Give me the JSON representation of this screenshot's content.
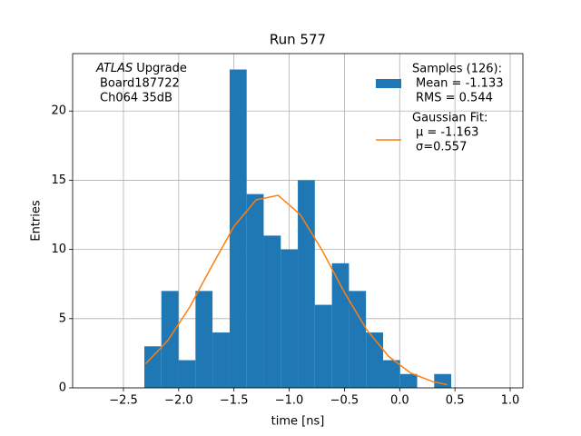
{
  "chart_data": {
    "type": "histogram",
    "title": "Run 577",
    "xlabel": "time [ns]",
    "ylabel": "Entries",
    "bins": [
      -2.311,
      -2.157,
      -2.002,
      -1.848,
      -1.694,
      -1.539,
      -1.385,
      -1.231,
      -1.076,
      -0.922,
      -0.768,
      -0.613,
      -0.459,
      -0.305,
      -0.15,
      0.004,
      0.158,
      0.312,
      0.466
    ],
    "counts": [
      3,
      7,
      2,
      7,
      4,
      23,
      14,
      11,
      10,
      15,
      6,
      9,
      7,
      4,
      2,
      1,
      0,
      1
    ],
    "color": "#1f77b4",
    "fit": {
      "color": "#ff7f0e",
      "x": [
        -2.3,
        -2.1,
        -1.9,
        -1.7,
        -1.5,
        -1.3,
        -1.1,
        -0.9,
        -0.7,
        -0.5,
        -0.3,
        -0.1,
        0.1,
        0.3,
        0.43
      ],
      "values": [
        1.74,
        3.4,
        5.84,
        8.8,
        11.66,
        13.58,
        13.91,
        12.52,
        9.91,
        6.89,
        4.22,
        2.27,
        1.07,
        0.45,
        0.23
      ]
    },
    "legend": [
      {
        "lines": [
          "Samples (126):",
          "Mean = -1.133",
          "RMS = 0.544"
        ]
      },
      {
        "lines": [
          "Gaussian Fit:",
          "μ = -1.163",
          "σ=0.557"
        ]
      }
    ],
    "legend_position": "upper right",
    "annotation": {
      "emphasis": "ATLAS",
      "text": "Upgrade",
      "lines": [
        "Board187722",
        "Ch064 35dB"
      ]
    },
    "xlim": [
      -2.96,
      1.115
    ],
    "ylim": [
      0,
      24.15
    ],
    "xticks": [
      {
        "value": -2.5,
        "label": "−2.5"
      },
      {
        "value": -2.0,
        "label": "−2.0"
      },
      {
        "value": -1.5,
        "label": "−1.5"
      },
      {
        "value": -1.0,
        "label": "−1.0"
      },
      {
        "value": -0.5,
        "label": "−0.5"
      },
      {
        "value": 0.0,
        "label": "0.0"
      },
      {
        "value": 0.5,
        "label": "0.5"
      },
      {
        "value": 1.0,
        "label": "1.0"
      }
    ],
    "yticks": [
      0,
      5,
      10,
      15,
      20
    ],
    "grid": true
  }
}
